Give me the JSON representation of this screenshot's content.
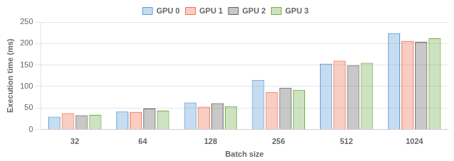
{
  "chart_data": {
    "type": "bar",
    "categories": [
      "32",
      "64",
      "128",
      "256",
      "512",
      "1024"
    ],
    "series": [
      {
        "name": "GPU 0",
        "color": "#5b9bd5",
        "values": [
          30,
          42,
          63,
          115,
          153,
          224
        ]
      },
      {
        "name": "GPU 1",
        "color": "#f07050",
        "values": [
          38,
          41,
          53,
          87,
          160,
          206
        ]
      },
      {
        "name": "GPU 2",
        "color": "#606060",
        "values": [
          33,
          49,
          61,
          97,
          149,
          204
        ]
      },
      {
        "name": "GPU 3",
        "color": "#70ad47",
        "values": [
          34,
          44,
          54,
          92,
          155,
          212
        ]
      }
    ],
    "x_label": "Batch size",
    "y_label": "Execution time (ms)",
    "ylim": [
      0,
      250
    ],
    "yticks": [
      0,
      50,
      100,
      150,
      200,
      250
    ],
    "grid": true,
    "legend": "top"
  }
}
